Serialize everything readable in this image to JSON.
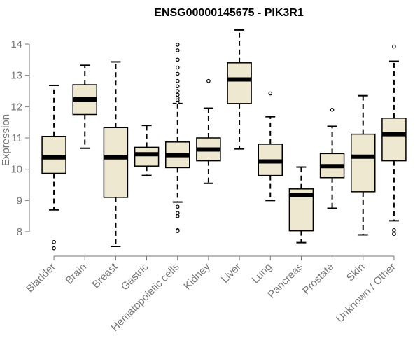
{
  "chart_data": {
    "type": "boxplot",
    "title": "ENSG00000145675 - PIK3R1",
    "xlabel": "",
    "ylabel": "Expression",
    "ylim": [
      7.4,
      14.5
    ],
    "yticks": [
      8,
      9,
      10,
      11,
      12,
      13,
      14
    ],
    "categories": [
      "Bladder",
      "Brain",
      "Breast",
      "Gastric",
      "Hematopoietic cells",
      "Kidney",
      "Liver",
      "Lung",
      "Pancreas",
      "Prostate",
      "Skin",
      "Unknown / Other"
    ],
    "series": [
      {
        "name": "Bladder",
        "whisker_low": 8.7,
        "q1": 9.87,
        "median": 10.38,
        "q3": 11.05,
        "whisker_high": 12.68,
        "outliers": [
          7.67,
          7.47
        ]
      },
      {
        "name": "Brain",
        "whisker_low": 10.67,
        "q1": 11.75,
        "median": 12.23,
        "q3": 12.7,
        "whisker_high": 13.32,
        "outliers": []
      },
      {
        "name": "Breast",
        "whisker_low": 7.53,
        "q1": 9.1,
        "median": 10.38,
        "q3": 11.33,
        "whisker_high": 13.43,
        "outliers": []
      },
      {
        "name": "Gastric",
        "whisker_low": 9.8,
        "q1": 10.1,
        "median": 10.48,
        "q3": 10.7,
        "whisker_high": 11.4,
        "outliers": []
      },
      {
        "name": "Hematopoietic cells",
        "whisker_low": 8.95,
        "q1": 10.05,
        "median": 10.45,
        "q3": 10.87,
        "whisker_high": 12.1,
        "outliers": [
          13.98,
          13.8,
          13.5,
          13.25,
          13.05,
          12.82,
          12.65,
          12.5,
          12.38,
          12.28,
          12.2,
          12.13,
          8.8,
          8.6,
          8.5,
          8.05,
          8.02
        ]
      },
      {
        "name": "Kidney",
        "whisker_low": 9.55,
        "q1": 10.27,
        "median": 10.63,
        "q3": 11.0,
        "whisker_high": 11.95,
        "outliers": [
          12.82
        ]
      },
      {
        "name": "Liver",
        "whisker_low": 10.65,
        "q1": 12.1,
        "median": 12.87,
        "q3": 13.4,
        "whisker_high": 14.45,
        "outliers": []
      },
      {
        "name": "Lung",
        "whisker_low": 9.0,
        "q1": 9.8,
        "median": 10.25,
        "q3": 10.8,
        "whisker_high": 11.68,
        "outliers": [
          12.42
        ]
      },
      {
        "name": "Pancreas",
        "whisker_low": 7.65,
        "q1": 8.03,
        "median": 9.18,
        "q3": 9.37,
        "whisker_high": 10.07,
        "outliers": []
      },
      {
        "name": "Prostate",
        "whisker_low": 8.75,
        "q1": 9.73,
        "median": 10.1,
        "q3": 10.5,
        "whisker_high": 11.37,
        "outliers": [
          11.9
        ]
      },
      {
        "name": "Skin",
        "whisker_low": 7.9,
        "q1": 9.28,
        "median": 10.4,
        "q3": 11.12,
        "whisker_high": 12.35,
        "outliers": []
      },
      {
        "name": "Unknown / Other",
        "whisker_low": 8.35,
        "q1": 10.27,
        "median": 11.12,
        "q3": 11.63,
        "whisker_high": 13.45,
        "outliers": [
          13.92,
          8.05,
          7.93
        ]
      }
    ],
    "colors": {
      "box_fill": "#efe8d0",
      "box_stroke": "#000000",
      "median": "#000000",
      "axis": "#777777",
      "title": "#000000"
    }
  }
}
